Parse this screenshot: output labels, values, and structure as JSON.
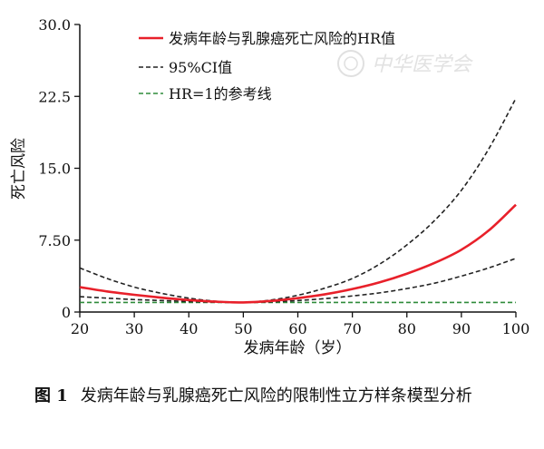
{
  "chart_data": {
    "type": "line",
    "title": "",
    "xlabel": "发病年龄（岁）",
    "ylabel": "死亡风险",
    "xlim": [
      20,
      100
    ],
    "ylim": [
      0,
      30
    ],
    "x_ticks": [
      20,
      30,
      40,
      50,
      60,
      70,
      80,
      90,
      100
    ],
    "y_ticks": [
      0,
      7.5,
      15,
      22.5,
      30
    ],
    "y_tick_labels": [
      "0",
      "7.50",
      "15.0",
      "22.5",
      "30.0"
    ],
    "grid": false,
    "legend_position": "top",
    "x": [
      20,
      25,
      30,
      35,
      40,
      45,
      50,
      55,
      60,
      65,
      70,
      75,
      80,
      85,
      90,
      95,
      100
    ],
    "series": [
      {
        "name": "发病年龄与乳腺癌死亡风险的HR值",
        "color": "#e8202a",
        "style": "solid",
        "values": [
          2.6,
          2.15,
          1.8,
          1.5,
          1.25,
          1.08,
          1.0,
          1.15,
          1.45,
          1.85,
          2.4,
          3.1,
          4.0,
          5.1,
          6.5,
          8.5,
          11.2
        ]
      },
      {
        "name": "95%CI值",
        "color": "#222222",
        "style": "dashed",
        "values": [
          4.6,
          3.5,
          2.6,
          1.95,
          1.45,
          1.12,
          1.0,
          1.25,
          1.75,
          2.5,
          3.5,
          5.0,
          7.0,
          9.5,
          12.7,
          17.0,
          22.3
        ]
      },
      {
        "name": "",
        "color": "#222222",
        "style": "dashed",
        "values": [
          1.6,
          1.45,
          1.3,
          1.2,
          1.1,
          1.03,
          1.0,
          1.06,
          1.2,
          1.4,
          1.68,
          2.0,
          2.45,
          3.0,
          3.75,
          4.6,
          5.6
        ]
      },
      {
        "name": "HR=1的参考线",
        "color": "#2e8b3a",
        "style": "dashed",
        "values": [
          1,
          1,
          1,
          1,
          1,
          1,
          1,
          1,
          1,
          1,
          1,
          1,
          1,
          1,
          1,
          1,
          1
        ]
      }
    ]
  },
  "watermark": {
    "text": "中华医学会"
  },
  "caption": {
    "label": "图 1",
    "text": "发病年龄与乳腺癌死亡风险的限制性立方样条模型分析"
  }
}
